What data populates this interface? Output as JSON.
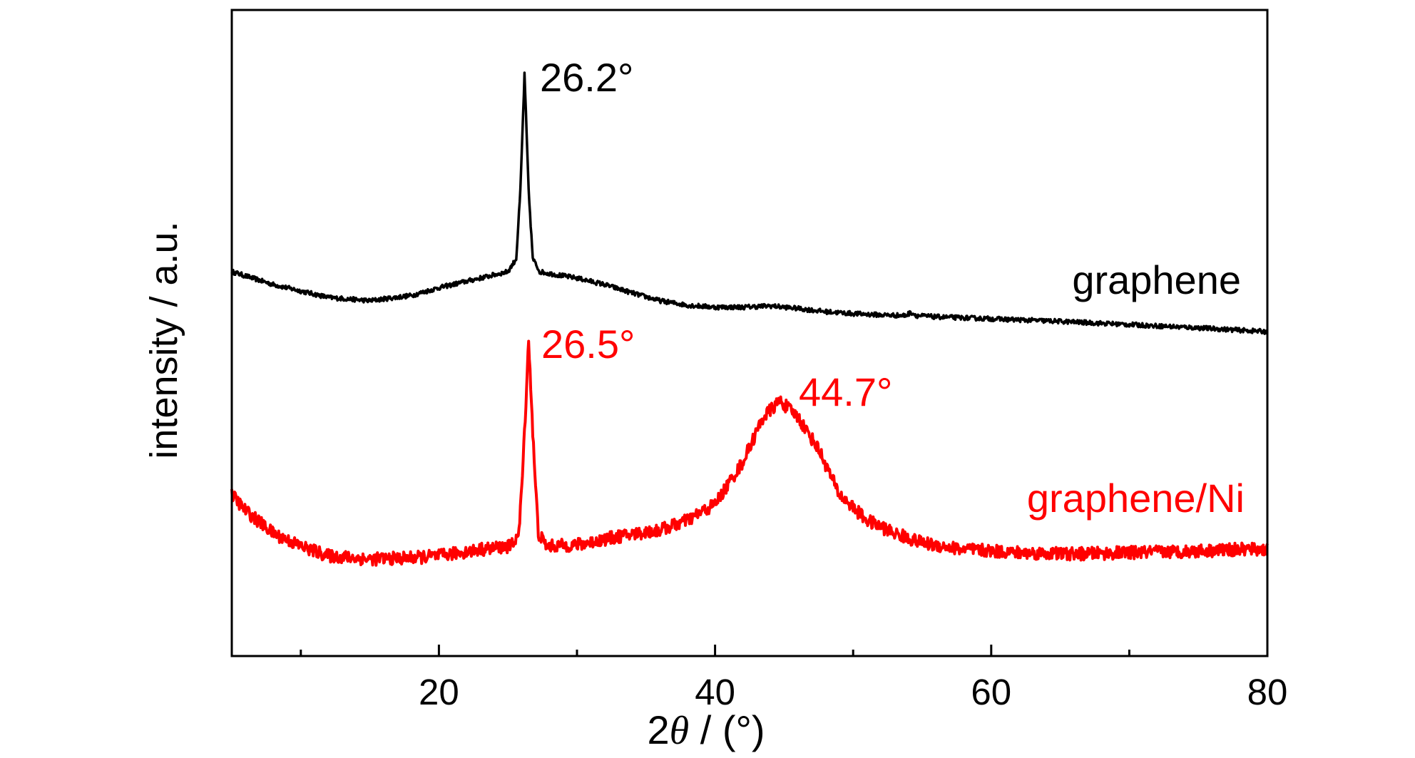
{
  "chart_data": {
    "type": "line",
    "title": "",
    "xlabel_prefix": "2",
    "xlabel_symbol": "θ",
    "xlabel_suffix": " / (°)",
    "ylabel": "intensity / a.u.",
    "xlim": [
      5,
      80
    ],
    "ylim": [
      0,
      100
    ],
    "x_ticks": [
      20,
      40,
      60,
      80
    ],
    "x_minor_ticks": [
      10,
      30,
      50,
      70
    ],
    "y_ticks_shown": false,
    "grid": false,
    "legend": "none (inline series labels at right)",
    "series": [
      {
        "name": "graphene",
        "color": "#000000",
        "noise": 0.35,
        "points": [
          [
            5,
            59.5
          ],
          [
            8,
            57.5
          ],
          [
            10,
            56.5
          ],
          [
            12,
            55.5
          ],
          [
            15,
            55.0
          ],
          [
            18,
            55.8
          ],
          [
            20,
            57.0
          ],
          [
            22,
            58.0
          ],
          [
            24,
            59.0
          ],
          [
            25,
            59.5
          ],
          [
            25.6,
            61.5
          ],
          [
            25.9,
            72.0
          ],
          [
            26.2,
            90.0
          ],
          [
            26.5,
            72.0
          ],
          [
            26.8,
            61.5
          ],
          [
            27.3,
            59.5
          ],
          [
            28,
            59.2
          ],
          [
            30,
            58.5
          ],
          [
            32,
            57.5
          ],
          [
            34,
            56.2
          ],
          [
            36,
            55.0
          ],
          [
            38,
            54.3
          ],
          [
            40,
            54.0
          ],
          [
            42,
            54.0
          ],
          [
            44,
            54.2
          ],
          [
            46,
            53.8
          ],
          [
            48,
            53.3
          ],
          [
            50,
            53.0
          ],
          [
            52,
            52.8
          ],
          [
            53.8,
            52.7
          ],
          [
            54.2,
            53.2
          ],
          [
            54.6,
            52.7
          ],
          [
            56,
            52.5
          ],
          [
            60,
            52.2
          ],
          [
            65,
            51.8
          ],
          [
            70,
            51.3
          ],
          [
            75,
            50.8
          ],
          [
            80,
            50.2
          ]
        ]
      },
      {
        "name": "graphene/Ni",
        "color": "#ff0000",
        "noise": 1.0,
        "points": [
          [
            5,
            25.0
          ],
          [
            6,
            22.5
          ],
          [
            8,
            19.0
          ],
          [
            10,
            17.0
          ],
          [
            12,
            15.5
          ],
          [
            15,
            15.0
          ],
          [
            18,
            15.2
          ],
          [
            20,
            15.5
          ],
          [
            23,
            16.5
          ],
          [
            25.2,
            17.0
          ],
          [
            25.8,
            19.0
          ],
          [
            26.1,
            30.0
          ],
          [
            26.5,
            49.0
          ],
          [
            26.9,
            30.0
          ],
          [
            27.2,
            19.0
          ],
          [
            27.8,
            17.0
          ],
          [
            30,
            17.2
          ],
          [
            33,
            18.5
          ],
          [
            36,
            19.5
          ],
          [
            38,
            21.0
          ],
          [
            40,
            23.5
          ],
          [
            42,
            30.0
          ],
          [
            43.5,
            37.0
          ],
          [
            44.7,
            39.5
          ],
          [
            46,
            37.0
          ],
          [
            47.5,
            32.0
          ],
          [
            49,
            25.0
          ],
          [
            51,
            21.0
          ],
          [
            53,
            19.0
          ],
          [
            55,
            17.5
          ],
          [
            58,
            16.5
          ],
          [
            62,
            16.0
          ],
          [
            66,
            15.8
          ],
          [
            70,
            16.0
          ],
          [
            74,
            16.2
          ],
          [
            78,
            16.5
          ],
          [
            80,
            16.5
          ]
        ]
      }
    ],
    "annotations": [
      {
        "text": "26.2°",
        "series": "graphene"
      },
      {
        "text": "26.5°",
        "series": "graphene/Ni"
      },
      {
        "text": "44.7°",
        "series": "graphene/Ni"
      }
    ]
  }
}
